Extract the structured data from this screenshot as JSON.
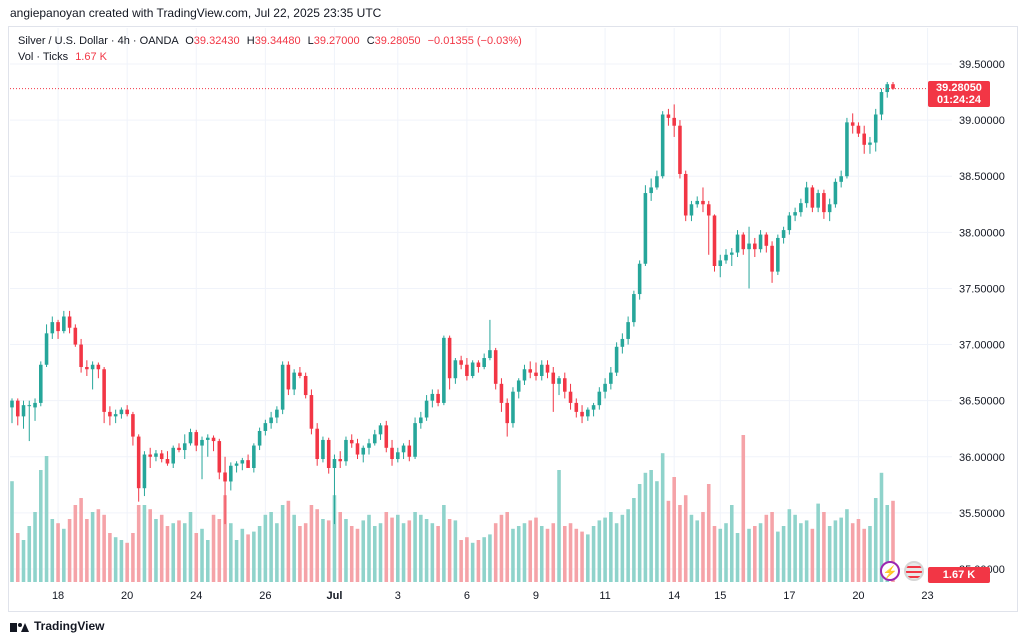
{
  "header": {
    "credit": "angiepanoyan created with TradingView.com, Jul 22, 2025 23:35 UTC"
  },
  "legend": {
    "symbol": "Silver / U.S. Dollar · 4h · OANDA",
    "open_label": "O",
    "open": "39.32430",
    "high_label": "H",
    "high": "39.34480",
    "low_label": "L",
    "low": "39.27000",
    "close_label": "C",
    "close": "39.28050",
    "change": "−0.01355 (−0.03%)",
    "volume_label": "Vol · Ticks",
    "volume_value": "1.67 K"
  },
  "price_axis": {
    "ticks": [
      "39.50000",
      "39.00000",
      "38.50000",
      "38.00000",
      "37.50000",
      "37.00000",
      "36.50000",
      "36.00000",
      "35.50000",
      "35.00000"
    ],
    "current_price": "39.28050",
    "countdown": "01:24:24",
    "volume_badge": "1.67 K"
  },
  "time_axis": {
    "labels": [
      "18",
      "20",
      "24",
      "26",
      "Jul",
      "3",
      "6",
      "9",
      "11",
      "14",
      "15",
      "17",
      "20",
      "23"
    ]
  },
  "icons": {
    "left": "lightning-icon",
    "right": "us-flag-icon"
  },
  "footer": {
    "brand": "TradingView"
  },
  "colors": {
    "up": "#26a69a",
    "down": "#f23645",
    "vol_up": "#8fd3cb",
    "vol_down": "#f5a3a8",
    "grid": "#f0f3fa"
  },
  "chart_data": {
    "type": "candlestick",
    "title": "Silver / U.S. Dollar · 4h · OANDA",
    "ylim": [
      34.85,
      39.72
    ],
    "candles_ohlc": [
      [
        36.44,
        36.52,
        36.3,
        36.5
      ],
      [
        36.5,
        36.52,
        36.28,
        36.36
      ],
      [
        36.36,
        36.5,
        36.25,
        36.46
      ],
      [
        36.46,
        36.5,
        36.14,
        36.46
      ],
      [
        36.44,
        36.52,
        36.32,
        36.48
      ],
      [
        36.48,
        36.85,
        36.45,
        36.82
      ],
      [
        36.82,
        37.18,
        36.8,
        37.1
      ],
      [
        37.1,
        37.25,
        37.05,
        37.2
      ],
      [
        37.2,
        37.22,
        37.05,
        37.12
      ],
      [
        37.12,
        37.3,
        37.1,
        37.25
      ],
      [
        37.25,
        37.3,
        37.1,
        37.15
      ],
      [
        37.15,
        37.18,
        36.98,
        37.0
      ],
      [
        37.0,
        37.05,
        36.75,
        36.8
      ],
      [
        36.8,
        36.86,
        36.72,
        36.78
      ],
      [
        36.78,
        36.85,
        36.6,
        36.82
      ],
      [
        36.82,
        36.84,
        36.7,
        36.78
      ],
      [
        36.78,
        36.8,
        36.3,
        36.4
      ],
      [
        36.4,
        36.45,
        36.28,
        36.36
      ],
      [
        36.36,
        36.42,
        36.3,
        36.38
      ],
      [
        36.38,
        36.44,
        36.34,
        36.42
      ],
      [
        36.42,
        36.46,
        36.36,
        36.38
      ],
      [
        36.38,
        36.4,
        36.1,
        36.18
      ],
      [
        36.18,
        36.2,
        35.6,
        35.72
      ],
      [
        35.72,
        36.05,
        35.65,
        36.02
      ],
      [
        36.02,
        36.08,
        35.9,
        36.0
      ],
      [
        36.0,
        36.06,
        35.96,
        36.03
      ],
      [
        36.03,
        36.06,
        35.95,
        35.98
      ],
      [
        35.98,
        36.05,
        35.92,
        35.94
      ],
      [
        35.94,
        36.1,
        35.9,
        36.08
      ],
      [
        36.08,
        36.12,
        36.04,
        36.06
      ],
      [
        36.06,
        36.2,
        35.98,
        36.12
      ],
      [
        36.12,
        36.25,
        36.1,
        36.22
      ],
      [
        36.22,
        36.24,
        36.05,
        36.1
      ],
      [
        36.1,
        36.18,
        35.8,
        36.15
      ],
      [
        36.15,
        36.2,
        36.0,
        36.17
      ],
      [
        36.17,
        36.19,
        36.05,
        36.14
      ],
      [
        36.14,
        36.16,
        35.8,
        35.86
      ],
      [
        35.86,
        36.0,
        35.4,
        35.78
      ],
      [
        35.78,
        35.95,
        35.7,
        35.92
      ],
      [
        35.92,
        35.96,
        35.86,
        35.94
      ],
      [
        35.94,
        35.99,
        35.88,
        35.97
      ],
      [
        35.97,
        36.02,
        35.92,
        35.9
      ],
      [
        35.9,
        36.12,
        35.86,
        36.1
      ],
      [
        36.1,
        36.26,
        36.06,
        36.23
      ],
      [
        36.23,
        36.33,
        36.19,
        36.3
      ],
      [
        36.3,
        36.4,
        36.25,
        36.35
      ],
      [
        36.35,
        36.45,
        36.3,
        36.42
      ],
      [
        36.42,
        36.85,
        36.38,
        36.82
      ],
      [
        36.82,
        36.85,
        36.55,
        36.6
      ],
      [
        36.6,
        36.78,
        36.55,
        36.75
      ],
      [
        36.75,
        36.8,
        36.7,
        36.72
      ],
      [
        36.72,
        36.75,
        36.52,
        36.55
      ],
      [
        36.55,
        36.6,
        36.2,
        36.25
      ],
      [
        36.25,
        36.3,
        35.92,
        35.98
      ],
      [
        35.98,
        36.18,
        35.95,
        36.15
      ],
      [
        36.15,
        36.17,
        35.85,
        35.9
      ],
      [
        35.9,
        36.02,
        35.4,
        35.98
      ],
      [
        35.98,
        36.05,
        35.9,
        35.96
      ],
      [
        35.96,
        36.18,
        35.92,
        36.15
      ],
      [
        36.15,
        36.2,
        36.08,
        36.12
      ],
      [
        36.12,
        36.16,
        35.98,
        36.02
      ],
      [
        36.02,
        36.1,
        35.95,
        36.08
      ],
      [
        36.08,
        36.16,
        36.02,
        36.12
      ],
      [
        36.12,
        36.24,
        36.1,
        36.2
      ],
      [
        36.2,
        36.3,
        36.15,
        36.28
      ],
      [
        36.28,
        36.32,
        36.04,
        36.08
      ],
      [
        36.08,
        36.15,
        35.92,
        35.98
      ],
      [
        35.98,
        36.08,
        35.95,
        36.04
      ],
      [
        36.04,
        36.12,
        35.98,
        36.1
      ],
      [
        36.1,
        36.15,
        35.96,
        36.0
      ],
      [
        36.0,
        36.35,
        35.98,
        36.3
      ],
      [
        36.3,
        36.4,
        36.25,
        36.35
      ],
      [
        36.35,
        36.55,
        36.32,
        36.5
      ],
      [
        36.5,
        36.6,
        36.44,
        36.56
      ],
      [
        36.56,
        36.6,
        36.45,
        36.48
      ],
      [
        36.48,
        37.08,
        36.46,
        37.06
      ],
      [
        37.06,
        37.08,
        36.6,
        36.7
      ],
      [
        36.7,
        36.88,
        36.65,
        36.86
      ],
      [
        36.86,
        36.9,
        36.78,
        36.82
      ],
      [
        36.82,
        36.88,
        36.68,
        36.72
      ],
      [
        36.72,
        36.86,
        36.7,
        36.84
      ],
      [
        36.84,
        36.86,
        36.75,
        36.8
      ],
      [
        36.8,
        36.92,
        36.78,
        36.88
      ],
      [
        36.88,
        37.22,
        36.86,
        36.95
      ],
      [
        36.95,
        36.97,
        36.6,
        36.65
      ],
      [
        36.65,
        36.7,
        36.4,
        36.48
      ],
      [
        36.48,
        36.52,
        36.18,
        36.3
      ],
      [
        36.3,
        36.62,
        36.26,
        36.58
      ],
      [
        36.58,
        36.7,
        36.52,
        36.68
      ],
      [
        36.68,
        36.82,
        36.64,
        36.78
      ],
      [
        36.78,
        36.85,
        36.7,
        36.75
      ],
      [
        36.75,
        36.84,
        36.68,
        36.72
      ],
      [
        36.72,
        36.86,
        36.68,
        36.82
      ],
      [
        36.82,
        36.86,
        36.7,
        36.75
      ],
      [
        36.75,
        36.8,
        36.4,
        36.65
      ],
      [
        36.65,
        36.72,
        36.55,
        36.7
      ],
      [
        36.7,
        36.75,
        36.52,
        36.58
      ],
      [
        36.58,
        36.65,
        36.42,
        36.48
      ],
      [
        36.48,
        36.52,
        36.35,
        36.4
      ],
      [
        36.4,
        36.46,
        36.3,
        36.36
      ],
      [
        36.36,
        36.44,
        36.32,
        36.42
      ],
      [
        36.42,
        36.48,
        36.36,
        36.46
      ],
      [
        36.46,
        36.62,
        36.42,
        36.58
      ],
      [
        36.58,
        36.7,
        36.52,
        36.65
      ],
      [
        36.65,
        36.8,
        36.6,
        36.75
      ],
      [
        36.75,
        37.02,
        36.72,
        36.98
      ],
      [
        36.98,
        37.1,
        36.92,
        37.05
      ],
      [
        37.05,
        37.25,
        37.0,
        37.2
      ],
      [
        37.2,
        37.48,
        37.16,
        37.45
      ],
      [
        37.45,
        37.75,
        37.4,
        37.72
      ],
      [
        37.72,
        38.42,
        37.7,
        38.35
      ],
      [
        38.35,
        38.48,
        38.28,
        38.4
      ],
      [
        38.4,
        38.55,
        38.38,
        38.5
      ],
      [
        38.5,
        39.08,
        38.48,
        39.05
      ],
      [
        39.05,
        39.1,
        38.95,
        39.02
      ],
      [
        39.02,
        39.14,
        38.85,
        38.95
      ],
      [
        38.95,
        39.0,
        38.48,
        38.52
      ],
      [
        38.52,
        38.55,
        38.1,
        38.15
      ],
      [
        38.15,
        38.28,
        38.1,
        38.25
      ],
      [
        38.25,
        38.32,
        38.22,
        38.28
      ],
      [
        38.28,
        38.4,
        38.18,
        38.25
      ],
      [
        38.25,
        38.28,
        37.8,
        38.15
      ],
      [
        38.15,
        38.16,
        37.65,
        37.7
      ],
      [
        37.7,
        37.8,
        37.6,
        37.75
      ],
      [
        37.75,
        37.85,
        37.72,
        37.8
      ],
      [
        37.8,
        37.86,
        37.7,
        37.82
      ],
      [
        37.82,
        38.02,
        37.78,
        37.98
      ],
      [
        37.98,
        38.0,
        37.8,
        37.85
      ],
      [
        37.85,
        38.05,
        37.5,
        37.9
      ],
      [
        37.9,
        37.95,
        37.78,
        37.85
      ],
      [
        37.85,
        38.02,
        37.82,
        37.98
      ],
      [
        37.98,
        38.0,
        37.82,
        37.88
      ],
      [
        37.88,
        37.92,
        37.55,
        37.65
      ],
      [
        37.65,
        37.98,
        37.62,
        37.95
      ],
      [
        37.95,
        38.05,
        37.9,
        38.02
      ],
      [
        38.02,
        38.18,
        37.98,
        38.15
      ],
      [
        38.15,
        38.22,
        38.1,
        38.18
      ],
      [
        38.18,
        38.3,
        38.14,
        38.26
      ],
      [
        38.26,
        38.45,
        38.22,
        38.4
      ],
      [
        38.4,
        38.42,
        38.18,
        38.22
      ],
      [
        38.22,
        38.38,
        38.18,
        38.35
      ],
      [
        38.35,
        38.38,
        38.12,
        38.18
      ],
      [
        38.18,
        38.3,
        38.1,
        38.25
      ],
      [
        38.25,
        38.48,
        38.22,
        38.45
      ],
      [
        38.45,
        38.55,
        38.4,
        38.5
      ],
      [
        38.5,
        39.02,
        38.48,
        38.98
      ],
      [
        38.98,
        39.06,
        38.88,
        38.95
      ],
      [
        38.95,
        38.98,
        38.85,
        38.88
      ],
      [
        38.88,
        38.95,
        38.7,
        38.78
      ],
      [
        38.78,
        38.85,
        38.7,
        38.8
      ],
      [
        38.8,
        39.1,
        38.72,
        39.05
      ],
      [
        39.05,
        39.28,
        39.0,
        39.25
      ],
      [
        39.25,
        39.34,
        39.2,
        39.32
      ],
      [
        39.32,
        39.34,
        39.27,
        39.28
      ]
    ],
    "volumes": [
      0.72,
      0.35,
      0.3,
      0.4,
      0.5,
      0.8,
      0.9,
      0.45,
      0.42,
      0.38,
      0.45,
      0.55,
      0.6,
      0.45,
      0.5,
      0.52,
      0.48,
      0.35,
      0.32,
      0.3,
      0.28,
      0.35,
      0.55,
      0.55,
      0.52,
      0.45,
      0.48,
      0.4,
      0.42,
      0.44,
      0.42,
      0.5,
      0.35,
      0.38,
      0.3,
      0.48,
      0.45,
      0.62,
      0.42,
      0.3,
      0.38,
      0.34,
      0.36,
      0.4,
      0.48,
      0.5,
      0.42,
      0.55,
      0.58,
      0.48,
      0.4,
      0.42,
      0.55,
      0.52,
      0.45,
      0.44,
      0.62,
      0.5,
      0.45,
      0.4,
      0.38,
      0.44,
      0.48,
      0.4,
      0.42,
      0.5,
      0.46,
      0.48,
      0.42,
      0.44,
      0.5,
      0.48,
      0.45,
      0.42,
      0.4,
      0.55,
      0.45,
      0.44,
      0.3,
      0.32,
      0.28,
      0.3,
      0.32,
      0.34,
      0.42,
      0.48,
      0.5,
      0.38,
      0.4,
      0.42,
      0.44,
      0.46,
      0.4,
      0.38,
      0.42,
      0.8,
      0.4,
      0.42,
      0.38,
      0.36,
      0.34,
      0.4,
      0.44,
      0.46,
      0.5,
      0.42,
      0.48,
      0.52,
      0.6,
      0.7,
      0.78,
      0.8,
      0.72,
      0.92,
      0.58,
      0.75,
      0.55,
      0.62,
      0.48,
      0.44,
      0.5,
      0.7,
      0.4,
      0.38,
      0.42,
      0.55,
      0.35,
      1.05,
      0.38,
      0.4,
      0.42,
      0.48,
      0.5,
      0.36,
      0.4,
      0.52,
      0.48,
      0.42,
      0.44,
      0.38,
      0.56,
      0.5,
      0.4,
      0.44,
      0.46,
      0.52,
      0.42,
      0.45,
      0.38,
      0.4,
      0.6,
      0.78,
      0.55,
      0.58,
      0.48,
      0.9,
      0.35,
      0.3,
      0.25
    ]
  }
}
